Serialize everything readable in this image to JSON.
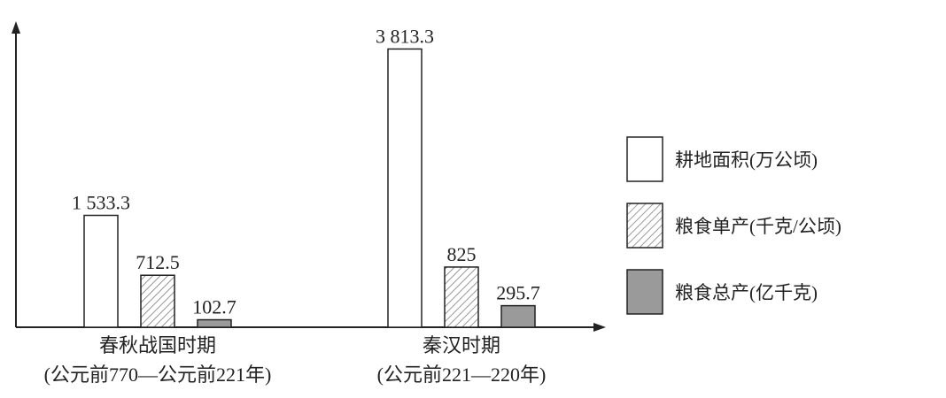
{
  "chart_data": {
    "type": "bar",
    "categories": [
      "春秋战国时期",
      "秦汉时期"
    ],
    "category_subtitles": [
      "(公元前770—公元前221年)",
      "(公元前221—220年)"
    ],
    "series": [
      {
        "name": "耕地面积(万公顷)",
        "color": "#ffffff",
        "values": [
          1533.3,
          3813.3
        ],
        "value_labels": [
          "1 533.3",
          "3 813.3"
        ]
      },
      {
        "name": "粮食单产(千克/公顷)",
        "color": "#ffffff",
        "hatch": true,
        "values": [
          712.5,
          825
        ]
      },
      {
        "name": "粮食总产(亿千克)",
        "color": "#9a9a9a",
        "values": [
          102.7,
          295.7
        ]
      }
    ],
    "ylim": [
      0,
      4000
    ]
  }
}
